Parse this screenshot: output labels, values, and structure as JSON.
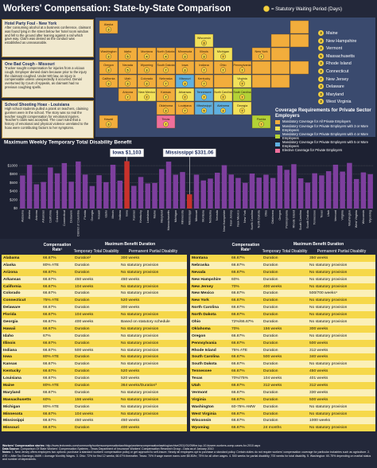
{
  "header": {
    "title": "Workers' Compensation: State-by-State Comparison",
    "legend_text": "= Statutory Waiting Period (Days)"
  },
  "stories": [
    {
      "title": "Hotel Party Foul - New York",
      "text": "After consuming alcohol at a business conference, claimant was found lying in the street below her hotel room window and fell to the ground after leaning against a rail which gave way. Claim was denied as the conduct was established as unreasonable."
    },
    {
      "title": "One Bad Cough - Missouri",
      "text": "Trucker sought compensation for injuries from a vicious cough. Employer denied claim because prior to the injury the claimant coughed. Under MO law, an injury is compensable unless unexpectedly it occurred. Denial overturned by Court of Appeals, as claimant had no previous coughing spells."
    },
    {
      "title": "School Shooting Hoax - Louisiana",
      "text": "High school students pulled a prank on teachers, claiming gunmen were in the school. The story was so real the teacher sought compensation for emotional injuries. Teacher's claim was accepted. The court ruled that a history of emotional and physical violence unrelated to the hoax were contributing factors to her symptoms."
    }
  ],
  "map": {
    "states": [
      {
        "name": "Alaska",
        "days": 3,
        "coverage": 0
      },
      {
        "name": "Wisconsin",
        "days": 3,
        "coverage": 1
      },
      {
        "name": "Washington",
        "days": 3,
        "coverage": 0
      },
      {
        "name": "Idaho",
        "days": 5,
        "coverage": 0
      },
      {
        "name": "Montana",
        "days": 4,
        "coverage": 0
      },
      {
        "name": "North Dakota",
        "days": 4,
        "coverage": 0
      },
      {
        "name": "Minnesota",
        "days": 3,
        "coverage": 0
      },
      {
        "name": "Illinois",
        "days": 3,
        "coverage": 0
      },
      {
        "name": "Michigan",
        "days": 7,
        "coverage": 1
      },
      {
        "name": "New York",
        "days": 7,
        "coverage": 0
      },
      {
        "name": "Oregon",
        "days": 3,
        "coverage": 0
      },
      {
        "name": "Nevada",
        "days": 5,
        "coverage": 0
      },
      {
        "name": "Wyoming",
        "days": 3,
        "coverage": 0
      },
      {
        "name": "South Dakota",
        "days": 7,
        "coverage": 0
      },
      {
        "name": "Iowa",
        "days": 3,
        "coverage": 0
      },
      {
        "name": "Indiana",
        "days": 7,
        "coverage": 0
      },
      {
        "name": "Ohio",
        "days": 7,
        "coverage": 0
      },
      {
        "name": "Pennsylvania",
        "days": 7,
        "coverage": 0
      },
      {
        "name": "California",
        "days": 3,
        "coverage": 0
      },
      {
        "name": "Utah",
        "days": 3,
        "coverage": 0
      },
      {
        "name": "Colorado",
        "days": 3,
        "coverage": 0
      },
      {
        "name": "Nebraska",
        "days": 7,
        "coverage": 0
      },
      {
        "name": "Missouri",
        "days": 3,
        "coverage": 3
      },
      {
        "name": "Kentucky",
        "days": 7,
        "coverage": 0
      },
      {
        "name": "Virginia",
        "days": 7,
        "coverage": 1
      },
      {
        "name": "Arizona",
        "days": 7,
        "coverage": 0
      },
      {
        "name": "New Mexico",
        "days": 7,
        "coverage": 1
      },
      {
        "name": "Kansas",
        "days": 7,
        "coverage": 0
      },
      {
        "name": "Arkansas",
        "days": 7,
        "coverage": 1
      },
      {
        "name": "Tennessee",
        "days": 7,
        "coverage": 3
      },
      {
        "name": "North Carolina",
        "days": 7,
        "coverage": 1
      },
      {
        "name": "South Carolina",
        "days": 7,
        "coverage": 2
      },
      {
        "name": "Oklahoma",
        "days": 3,
        "coverage": 0
      },
      {
        "name": "Louisiana",
        "days": 7,
        "coverage": 0
      },
      {
        "name": "Mississippi",
        "days": 5,
        "coverage": 3
      },
      {
        "name": "Alabama",
        "days": 3,
        "coverage": 3
      },
      {
        "name": "Georgia",
        "days": 7,
        "coverage": 1
      },
      {
        "name": "Hawaii",
        "days": 3,
        "coverage": 0
      },
      {
        "name": "Texas",
        "days": 7,
        "coverage": 4
      },
      {
        "name": "Florida",
        "days": 7,
        "coverage": 2
      }
    ],
    "callouts": [
      {
        "name": "Maine",
        "days": 3,
        "coverage": 0
      },
      {
        "name": "New Hampshire",
        "days": 3,
        "coverage": 0
      },
      {
        "name": "Vermont",
        "days": 3,
        "coverage": 0
      },
      {
        "name": "Massachusetts",
        "days": 5,
        "coverage": 0
      },
      {
        "name": "Rhode Island",
        "days": 3,
        "coverage": 0
      },
      {
        "name": "Connecticut",
        "days": 3,
        "coverage": 0
      },
      {
        "name": "New Jersey",
        "days": 7,
        "coverage": 0
      },
      {
        "name": "Delaware",
        "days": 3,
        "coverage": 0
      },
      {
        "name": "Maryland",
        "days": 3,
        "coverage": 0
      },
      {
        "name": "West Virginia",
        "days": 3,
        "coverage": 0
      }
    ]
  },
  "coverage_legend": {
    "title": "Coverage Requirements for Private Sector Employers",
    "items": [
      {
        "label": "Mandatory Coverage for All Private Employers",
        "color": "#f2ad3c"
      },
      {
        "label": "Mandatory Coverage for Private Employers with 3 or More Employees",
        "color": "#f2e15a"
      },
      {
        "label": "Mandatory Coverage for Private Employers with 4 or More Employees",
        "color": "#b3d236"
      },
      {
        "label": "Mandatory Coverage for Private Employers with 5 or More Employees",
        "color": "#5fb0e0"
      },
      {
        "label": "Elective Coverage for Private Employers",
        "color": "#ef6f9b"
      }
    ]
  },
  "chart_data": {
    "type": "bar",
    "title": "Maximum Weekly Temporary Total Disability Benefit",
    "categories": [
      "Alabama",
      "Alaska",
      "Arizona",
      "Arkansas",
      "California",
      "Colorado",
      "Connecticut",
      "Delaware",
      "District of Columbia",
      "Florida",
      "Georgia",
      "Hawaii",
      "Idaho",
      "Illinois",
      "Indiana",
      "Iowa",
      "Kansas",
      "Kentucky",
      "Louisiana",
      "Maine",
      "Maryland",
      "Massachusetts",
      "Michigan",
      "Minnesota",
      "Mississippi",
      "Missouri",
      "Montana",
      "Nebraska",
      "Nevada",
      "New Hampshire",
      "New Jersey",
      "New Mexico",
      "New York",
      "North Carolina",
      "North Dakota",
      "Ohio",
      "Oklahoma",
      "Oregon",
      "Pennsylvania",
      "Rhode Island",
      "South Carolina",
      "South Dakota",
      "Tennessee",
      "Texas",
      "Utah",
      "Vermont",
      "Virginia",
      "Washington",
      "West Virginia",
      "Wisconsin",
      "Wyoming"
    ],
    "values": [
      770,
      1019,
      565,
      619,
      957,
      821,
      1059,
      625,
      1097,
      791,
      525,
      776,
      615,
      1020,
      650,
      1103,
      529,
      735,
      585,
      596,
      920,
      1093,
      788,
      850,
      331.06,
      789,
      655,
      698,
      834,
      1010,
      792,
      713,
      600,
      816,
      720,
      788,
      712,
      1002,
      902,
      1033,
      704,
      605,
      822,
      773,
      870,
      1021,
      861,
      1063,
      688,
      842,
      800
    ],
    "value_labels": [
      null,
      null,
      null,
      null,
      null,
      null,
      null,
      null,
      null,
      null,
      null,
      null,
      null,
      null,
      null,
      "Iowa $1,103",
      null,
      null,
      null,
      null,
      null,
      null,
      null,
      null,
      "Mississippi $331.06",
      null,
      null,
      null,
      null,
      null,
      null,
      null,
      null,
      null,
      null,
      null,
      null,
      null,
      null,
      null,
      null,
      null,
      null,
      null,
      null,
      null,
      null,
      null,
      null,
      null,
      null
    ],
    "color": "#7e3f9e",
    "highlight_color": "#c8322c",
    "ylim": [
      0,
      1150
    ],
    "yticks": [
      {
        "value": 0,
        "label": "$0"
      },
      {
        "value": 200,
        "label": "$200"
      },
      {
        "value": 400,
        "label": "$400"
      },
      {
        "value": 600,
        "label": "$600"
      },
      {
        "value": 800,
        "label": "$800"
      },
      {
        "value": 1000,
        "label": "$1000"
      }
    ],
    "grid": true
  },
  "table": {
    "headers": {
      "state": "",
      "rate": "Compensation Rate¹",
      "duration": "Maximum Benefit Duration",
      "ttd": "Temporary Total Disability",
      "ppd": "Permanent Partial Disability"
    },
    "left": [
      [
        "Alabama",
        "66.67%",
        "Duration²",
        "300 weeks"
      ],
      [
        "Alaska",
        "80% ATE",
        "Duration",
        "No statutory provision"
      ],
      [
        "Arizona",
        "66.67%",
        "Duration",
        "No statutory provision"
      ],
      [
        "Arkansas",
        "66.67%",
        "450 weeks",
        "450 weeks"
      ],
      [
        "California",
        "66.67%",
        "104 weeks",
        "No statutory provision"
      ],
      [
        "Colorado",
        "66.67%",
        "Duration",
        "No statutory provision"
      ],
      [
        "Connecticut",
        "75% ATE",
        "Duration",
        "520 weeks"
      ],
      [
        "Delaware",
        "66.67%",
        "Duration",
        "300 weeks"
      ],
      [
        "Florida",
        "66.67%",
        "104 weeks",
        "No statutory provision"
      ],
      [
        "Georgia",
        "66.67%",
        "400 weeks",
        "Based on statutory schedule"
      ],
      [
        "Hawaii",
        "66.67%",
        "Duration",
        "No statutory provision"
      ],
      [
        "Idaho",
        "67%",
        "Duration",
        "No statutory provision"
      ],
      [
        "Illinois",
        "66.67%",
        "Duration",
        "No statutory provision"
      ],
      [
        "Indiana",
        "66.67%",
        "500 weeks",
        "No statutory provision"
      ],
      [
        "Iowa",
        "80% ATE",
        "Duration",
        "No statutory provision"
      ],
      [
        "Kansas",
        "66.67%",
        "Duration",
        "No statutory provision"
      ],
      [
        "Kentucky",
        "66.67%",
        "Duration",
        "520 weeks"
      ],
      [
        "Louisiana",
        "66.67%",
        "Duration",
        "520 weeks"
      ],
      [
        "Maine",
        "80% ATE",
        "Duration",
        "364 weeks/Duration³"
      ],
      [
        "Maryland",
        "66.67%",
        "Duration",
        "No statutory provision"
      ],
      [
        "Massachusetts",
        "60%",
        "156 weeks",
        "No statutory provision"
      ],
      [
        "Michigan",
        "80% ATE",
        "Duration",
        "No statutory provision"
      ],
      [
        "Minnesota",
        "66.67%",
        "104 weeks",
        "No statutory provision"
      ],
      [
        "Mississippi",
        "66.67%",
        "450 weeks",
        "450 weeks"
      ],
      [
        "Missouri",
        "66.67%",
        "Duration",
        "400 weeks"
      ]
    ],
    "right": [
      [
        "Montana",
        "66.67%",
        "Duration",
        "350 weeks"
      ],
      [
        "Nebraska",
        "66.67%",
        "Duration",
        "No statutory provision"
      ],
      [
        "Nevada",
        "66.67%",
        "Duration",
        "No statutory provision"
      ],
      [
        "New Hampshire",
        "60%",
        "Duration",
        "No statutory provision"
      ],
      [
        "New Jersey",
        "70%",
        "400 weeks",
        "No statutory provision"
      ],
      [
        "New Mexico",
        "66.67%",
        "Duration",
        "500/700 weeks⁴"
      ],
      [
        "New York",
        "66.67%",
        "Duration",
        "No statutory provision"
      ],
      [
        "North Carolina",
        "66.67%",
        "Duration",
        "No statutory provision"
      ],
      [
        "North Dakota",
        "66.67%",
        "Duration",
        "No statutory provision"
      ],
      [
        "Ohio",
        "72%/66.67%",
        "Duration",
        "No statutory provision"
      ],
      [
        "Oklahoma",
        "70%",
        "156 weeks",
        "300 weeks"
      ],
      [
        "Oregon",
        "66.67%",
        "Duration",
        "No statutory provision"
      ],
      [
        "Pennsylvania",
        "66.67%",
        "Duration",
        "500 weeks"
      ],
      [
        "Rhode Island",
        "75% ATE",
        "Duration",
        "312 weeks"
      ],
      [
        "South Carolina",
        "66.67%",
        "500 weeks",
        "340 weeks"
      ],
      [
        "South Dakota",
        "66.67%",
        "Duration",
        "No statutory provision"
      ],
      [
        "Tennessee",
        "66.67%",
        "Duration",
        "450 weeks"
      ],
      [
        "Texas",
        "70%/75%",
        "104 weeks",
        "401 weeks"
      ],
      [
        "Utah",
        "66.67%",
        "312 weeks",
        "312 weeks"
      ],
      [
        "Vermont",
        "66.67%",
        "Duration",
        "330 weeks"
      ],
      [
        "Virginia",
        "66.67%",
        "Duration",
        "500 weeks"
      ],
      [
        "Washington",
        "60-75% AMW",
        "Duration",
        "No statutory provision"
      ],
      [
        "West Virginia",
        "66.67%",
        "Duration",
        "No statutory provision"
      ],
      [
        "Wisconsin",
        "66.67%",
        "Duration",
        "1000 weeks"
      ],
      [
        "Wyoming",
        "66.67%",
        "24 months",
        "No statutory provision"
      ]
    ]
  },
  "footer": [
    {
      "label": "Workers' Compensation stories:",
      "text": "http://www.lexisnexis.com/community/workerscompensationlaw/blogs/workerscompensationlawblog/archive/2011/01/09/the-top-10-bizarre-workers-comp-cases-for-2010.aspx"
    },
    {
      "label": "Data Source:",
      "text": "Comparison Of State Workers' Compensation Systems - Texas Department of Insurance Workers' Compensation Research Group - Data as of January 2010"
    },
    {
      "label": "Notes:",
      "text": "1. New Jersey offers employers two options: purchase a standard workers' compensation policy or get approved to self-insure. Nearly all employers opt to purchase a standard policy. Certain duties do not require workers' compensation coverage for particular industries such as agriculture. 2. ATE = After Tax Earnings; AMW = Average Monthly Wages. 3. Ohio: 72% for first 12 weeks; 66.67% thereafter. Texas: 70% if wage earner earns over $8.50/hr; 75% for all other wages. 4. 500 weeks for partial disability; 700 weeks for total disability. 5. Washington: 60-75% depending on marital status and number of dependents."
    }
  ]
}
